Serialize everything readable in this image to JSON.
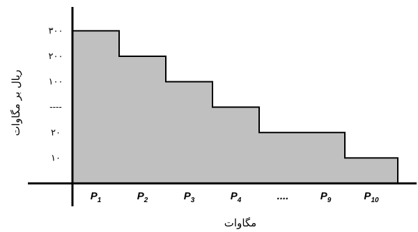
{
  "chart_data": {
    "type": "area",
    "xlabel": "مگاوات",
    "ylabel": "ریال بر مگاوات",
    "y_tick_labels": [
      "۳۰۰",
      "۲۰۰",
      "۱۰۰",
      "----",
      "۲۰",
      "۱۰"
    ],
    "categories": [
      {
        "main": "P",
        "sub": "1"
      },
      {
        "main": "P",
        "sub": "2"
      },
      {
        "main": "P",
        "sub": "3"
      },
      {
        "main": "P",
        "sub": "4"
      },
      {
        "main": "....",
        "sub": ""
      },
      {
        "main": "P",
        "sub": "9"
      },
      {
        "main": "P",
        "sub": "10"
      }
    ],
    "series": [
      {
        "levels": [
          6,
          5,
          4,
          3,
          2,
          2,
          1
        ]
      }
    ],
    "fill_color": "#c0c0c0",
    "line_color": "#000000",
    "grid": false
  }
}
